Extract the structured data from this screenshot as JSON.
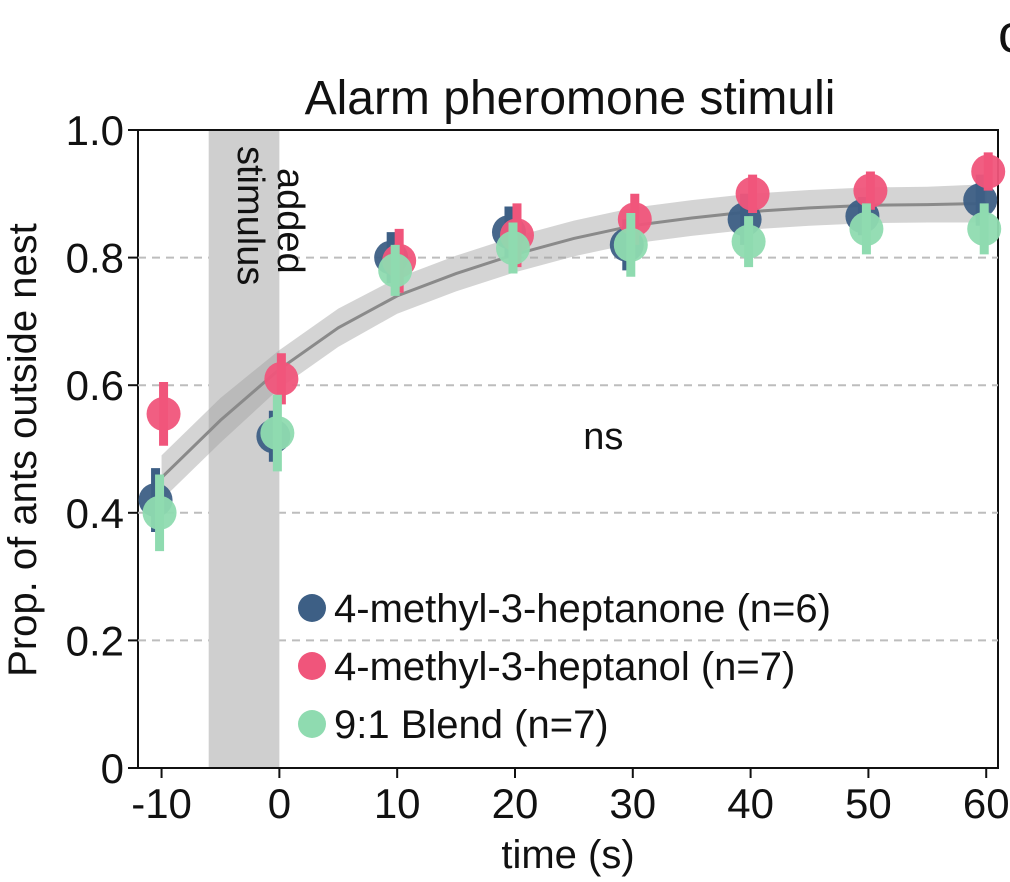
{
  "panel_letter": "c",
  "chart_data": {
    "type": "scatter",
    "title": "Alarm pheromone stimuli",
    "xlabel": "time (s)",
    "ylabel": "Prop. of ants outside nest",
    "xlim": [
      -12,
      61
    ],
    "ylim": [
      0,
      1.0
    ],
    "x_ticks": [
      "-10",
      "0",
      "10",
      "20",
      "30",
      "40",
      "50",
      "60"
    ],
    "y_ticks": [
      "0",
      "0.2",
      "0.4",
      "0.6",
      "0.8",
      "1.0"
    ],
    "grid": "horizontal dashed at 0.2, 0.4, 0.6, 0.8",
    "stimulus_band": {
      "x_start": -6,
      "x_end": 0,
      "label_line1": "stimulus",
      "label_line2": "added"
    },
    "annotation": "ns",
    "legend_position": "bottom-left",
    "series": [
      {
        "name": "4-methyl-3-heptanone (n=6)",
        "color": "#3d5f85",
        "x": [
          -10,
          0,
          10,
          20,
          30,
          40,
          50,
          60
        ],
        "y": [
          0.42,
          0.52,
          0.8,
          0.84,
          0.82,
          0.86,
          0.865,
          0.89
        ],
        "err": [
          0.05,
          0.04,
          0.04,
          0.04,
          0.04,
          0.04,
          0.03,
          0.04
        ]
      },
      {
        "name": "4-methyl-3-heptanol (n=7)",
        "color": "#f0557b",
        "x": [
          -10,
          0,
          10,
          20,
          30,
          40,
          50,
          60
        ],
        "y": [
          0.555,
          0.61,
          0.795,
          0.835,
          0.86,
          0.9,
          0.905,
          0.935
        ],
        "err": [
          0.05,
          0.04,
          0.05,
          0.05,
          0.04,
          0.03,
          0.03,
          0.03
        ]
      },
      {
        "name": "9:1 Blend (n=7)",
        "color": "#8fdbb0",
        "x": [
          -10,
          0,
          10,
          20,
          30,
          40,
          50,
          60
        ],
        "y": [
          0.4,
          0.525,
          0.78,
          0.815,
          0.82,
          0.825,
          0.845,
          0.845
        ],
        "err": [
          0.06,
          0.06,
          0.04,
          0.04,
          0.05,
          0.04,
          0.04,
          0.04
        ]
      }
    ],
    "fit": {
      "x": [
        -10,
        -5,
        0,
        5,
        10,
        15,
        20,
        25,
        30,
        35,
        40,
        45,
        50,
        55,
        60
      ],
      "y": [
        0.455,
        0.545,
        0.625,
        0.69,
        0.74,
        0.775,
        0.805,
        0.83,
        0.85,
        0.862,
        0.872,
        0.878,
        0.882,
        0.883,
        0.885
      ],
      "band": [
        0.035,
        0.035,
        0.03,
        0.03,
        0.028,
        0.028,
        0.028,
        0.028,
        0.028,
        0.028,
        0.028,
        0.028,
        0.028,
        0.028,
        0.03
      ],
      "color": "#a0a0a0"
    }
  }
}
